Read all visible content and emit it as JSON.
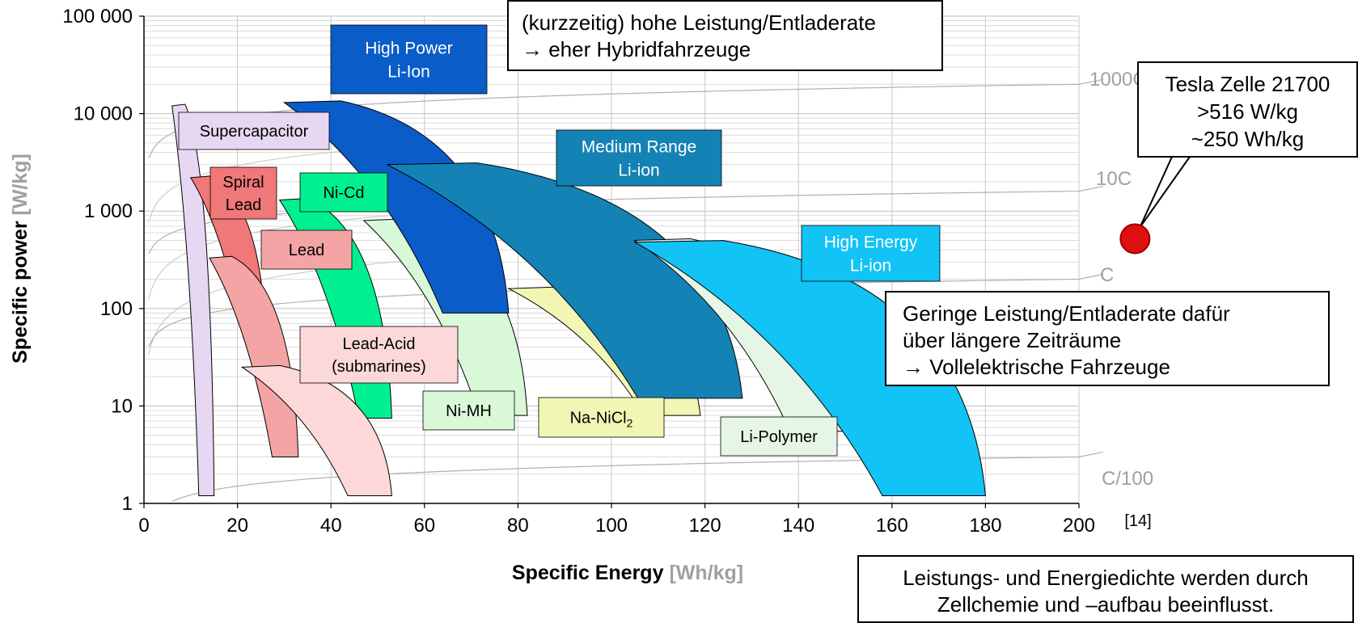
{
  "chart_data": {
    "type": "ragone",
    "xlabel": "Specific Energy",
    "xlabel_unit": "[Wh/kg]",
    "ylabel": "Specific power",
    "ylabel_unit": "[W/kg]",
    "xlim": [
      0,
      200
    ],
    "ylim": [
      1,
      100000
    ],
    "y_scale": "log",
    "x_ticks": [
      0,
      20,
      40,
      60,
      80,
      100,
      120,
      140,
      160,
      180,
      200
    ],
    "x_tick_labels": [
      "0",
      "20",
      "40",
      "60",
      "80",
      "100",
      "120",
      "140",
      "160",
      "180",
      "200"
    ],
    "y_ticks": [
      1,
      10,
      100,
      1000,
      10000,
      100000
    ],
    "y_tick_labels": [
      "1",
      "10",
      "100",
      "1 000",
      "10 000",
      "100 000"
    ],
    "grid": true,
    "rate_lines": [
      {
        "label": "1000C"
      },
      {
        "label": "10C"
      },
      {
        "label": "C"
      },
      {
        "label": "C/100"
      }
    ],
    "regions": [
      {
        "name": "Supercapacitor",
        "label_lines": [
          "Supercapacitor"
        ],
        "energy_range": [
          6,
          15
        ],
        "power_range": [
          1.2,
          12000
        ],
        "color": "#e6d8f2"
      },
      {
        "name": "Spiral Lead",
        "label_lines": [
          "Spiral",
          "Lead"
        ],
        "energy_range": [
          10,
          26
        ],
        "power_range": [
          50,
          2200
        ],
        "color": "#f07878"
      },
      {
        "name": "Lead",
        "label_lines": [
          "Lead"
        ],
        "energy_range": [
          14,
          33
        ],
        "power_range": [
          3,
          330
        ],
        "color": "#f4a4a4"
      },
      {
        "name": "Ni-Cd",
        "label_lines": [
          "Ni-Cd"
        ],
        "energy_range": [
          29,
          53
        ],
        "power_range": [
          7.5,
          1300
        ],
        "color": "#00f090"
      },
      {
        "name": "Lead-Acid (submarines)",
        "label_lines": [
          "Lead-Acid",
          "(submarines)"
        ],
        "energy_range": [
          21,
          53
        ],
        "power_range": [
          1.2,
          25
        ],
        "color": "#fcd8d8"
      },
      {
        "name": "Ni-MH",
        "label_lines": [
          "Ni-MH"
        ],
        "energy_range": [
          47,
          82
        ],
        "power_range": [
          8,
          800
        ],
        "color": "#d8f8d8"
      },
      {
        "name": "High Power Li-Ion",
        "label_lines": [
          "High Power",
          "Li-Ion"
        ],
        "energy_range": [
          30,
          78
        ],
        "power_range": [
          90,
          13000
        ],
        "color": "#0a5cc8"
      },
      {
        "name": "Na-NiCl2",
        "label_lines": [
          "Na-NiCl",
          "2"
        ],
        "energy_range": [
          78,
          119
        ],
        "power_range": [
          8,
          160
        ],
        "color": "#f2f6b4"
      },
      {
        "name": "Medium Range Li-ion",
        "label_lines": [
          "Medium Range",
          "Li-ion"
        ],
        "energy_range": [
          52,
          128
        ],
        "power_range": [
          12,
          3000
        ],
        "color": "#1482b4"
      },
      {
        "name": "Li-Polymer",
        "label_lines": [
          "Li-Polymer"
        ],
        "energy_range": [
          105,
          152
        ],
        "power_range": [
          5.5,
          500
        ],
        "color": "#e6f6e6"
      },
      {
        "name": "High Energy Li-ion",
        "label_lines": [
          "High Energy",
          "Li-ion"
        ],
        "energy_range": [
          105,
          180
        ],
        "power_range": [
          1.2,
          480
        ],
        "color": "#12c3f5"
      }
    ],
    "marker": {
      "name": "Tesla Zelle 21700",
      "energy": 212,
      "power": 520,
      "color": "#e01010"
    },
    "reference": "[14]"
  },
  "callouts": {
    "top": [
      "(kurzzeitig) hohe Leistung/Entladerate",
      "→ eher Hybridfahrzeuge"
    ],
    "right": [
      "Geringe Leistung/Entladerate dafür",
      "über längere Zeiträume",
      "→ Vollelektrische Fahrzeuge"
    ],
    "bottom": [
      "Leistungs- und Energiedichte werden durch",
      "Zellchemie und –aufbau beeinflusst."
    ],
    "tesla": [
      "Tesla Zelle 21700",
      ">516 W/kg",
      "~250 Wh/kg"
    ]
  }
}
